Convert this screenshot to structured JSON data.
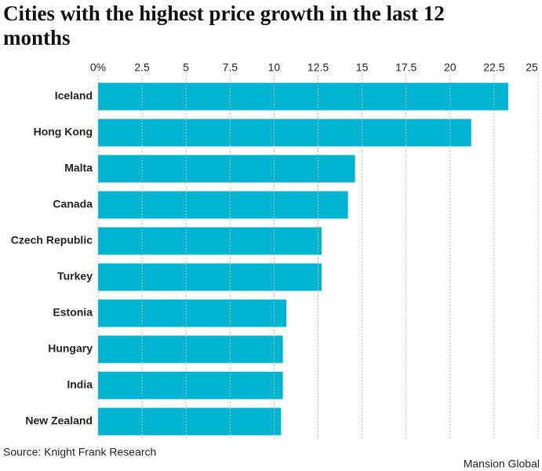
{
  "chart_data": {
    "type": "hbar",
    "title": "Cities with the highest price growth in the last 12 months",
    "categories": [
      "Iceland",
      "Hong Kong",
      "Malta",
      "Canada",
      "Czech Republic",
      "Turkey",
      "Estonia",
      "Hungary",
      "India",
      "New Zealand"
    ],
    "values": [
      23.3,
      21.2,
      14.6,
      14.2,
      12.7,
      12.7,
      10.7,
      10.5,
      10.5,
      10.4
    ],
    "color": "#00b4d2",
    "xlim": [
      0,
      25
    ],
    "xticks": [
      {
        "value": 0,
        "label": "0%"
      },
      2.5,
      5,
      7.5,
      10,
      12.5,
      15,
      17.5,
      20,
      22.5,
      25
    ],
    "grid": true,
    "source": "Source: Knight Frank Research",
    "credit": "Mansion Global"
  }
}
